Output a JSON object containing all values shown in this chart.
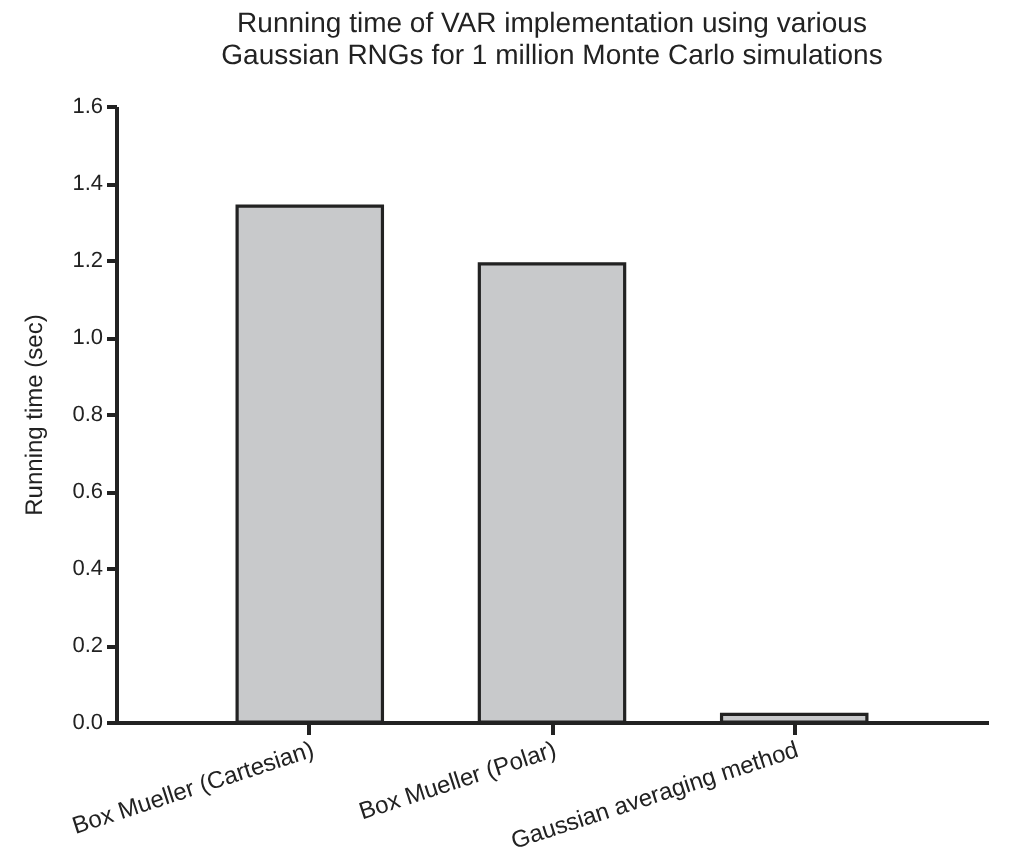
{
  "chart_data": {
    "type": "bar",
    "title": [
      "Running time of VAR implementation using various",
      "Gaussian RNGs for 1 million Monte Carlo simulations"
    ],
    "ylabel": "Running time (sec)",
    "categories": [
      "Box Mueller (Cartesian)",
      "Box Mueller (Polar)",
      "Gaussian averaging method"
    ],
    "values": [
      1.34,
      1.19,
      0.02
    ],
    "color": "#c8c9cb",
    "ylim": [
      0,
      1.6
    ],
    "yticks": [
      {
        "value": 0,
        "label": "0.0"
      },
      0.2,
      0.4,
      0.6,
      0.8,
      {
        "value": 1,
        "label": "1.0"
      },
      1.2,
      1.4,
      1.6
    ],
    "grid": false
  }
}
